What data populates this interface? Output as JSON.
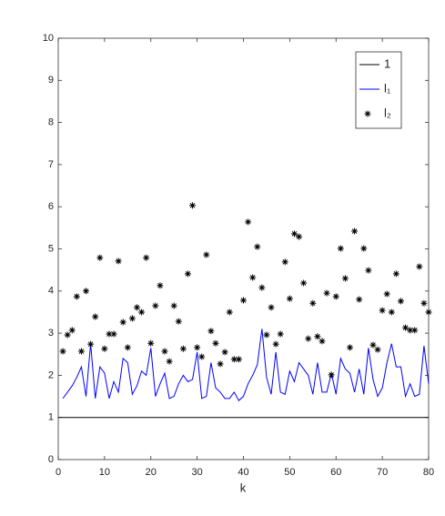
{
  "chart_data": {
    "type": "line",
    "xlabel": "k",
    "xlim": [
      0,
      80
    ],
    "xticks": [
      0,
      10,
      20,
      30,
      40,
      50,
      60,
      70,
      80
    ],
    "ylim": [
      0,
      10
    ],
    "yticks": [
      0,
      1,
      2,
      3,
      4,
      5,
      6,
      7,
      8,
      9,
      10
    ],
    "grid": false,
    "legend": "upper right",
    "series": [
      {
        "name": "1",
        "color": "#000000",
        "style": "line",
        "x": [
          0,
          80
        ],
        "values": [
          1,
          1
        ]
      },
      {
        "name": "l₁",
        "color": "#0000ff",
        "style": "line",
        "x": [
          1,
          2,
          3,
          4,
          5,
          6,
          7,
          8,
          9,
          10,
          11,
          12,
          13,
          14,
          15,
          16,
          17,
          18,
          19,
          20,
          21,
          22,
          23,
          24,
          25,
          26,
          27,
          28,
          29,
          30,
          31,
          32,
          33,
          34,
          35,
          36,
          37,
          38,
          39,
          40,
          41,
          42,
          43,
          44,
          45,
          46,
          47,
          48,
          49,
          50,
          51,
          52,
          53,
          54,
          55,
          56,
          57,
          58,
          59,
          60,
          61,
          62,
          63,
          64,
          65,
          66,
          67,
          68,
          69,
          70,
          71,
          72,
          73,
          74,
          75,
          76,
          77,
          78,
          79,
          80
        ],
        "values": [
          1.45,
          1.6,
          1.75,
          1.95,
          2.2,
          1.5,
          2.75,
          1.45,
          2.2,
          2.05,
          1.45,
          1.85,
          1.6,
          2.4,
          2.3,
          1.55,
          1.75,
          2.1,
          2.0,
          2.65,
          1.5,
          1.8,
          2.05,
          1.45,
          1.5,
          1.8,
          2.0,
          1.85,
          1.9,
          2.55,
          1.45,
          1.5,
          2.3,
          1.7,
          1.6,
          1.45,
          1.45,
          1.6,
          1.4,
          1.5,
          1.8,
          2.0,
          2.25,
          3.1,
          1.95,
          1.55,
          2.55,
          1.6,
          1.55,
          2.1,
          1.85,
          2.3,
          2.15,
          2.0,
          1.55,
          2.3,
          1.6,
          1.6,
          2.05,
          1.55,
          2.4,
          2.15,
          2.05,
          1.6,
          2.15,
          1.55,
          2.65,
          1.9,
          1.5,
          1.7,
          2.3,
          2.75,
          2.2,
          2.2,
          1.5,
          1.8,
          1.5,
          1.55,
          2.7,
          1.8
        ]
      },
      {
        "name": "l₂",
        "color": "#000000",
        "style": "asterisk",
        "x": [
          1,
          2,
          3,
          4,
          5,
          6,
          7,
          8,
          9,
          10,
          11,
          12,
          13,
          14,
          15,
          16,
          17,
          18,
          19,
          20,
          21,
          22,
          23,
          24,
          25,
          26,
          27,
          28,
          29,
          30,
          31,
          32,
          33,
          34,
          35,
          36,
          37,
          38,
          39,
          40,
          41,
          42,
          43,
          44,
          45,
          46,
          47,
          48,
          49,
          50,
          51,
          52,
          53,
          54,
          55,
          56,
          57,
          58,
          59,
          60,
          61,
          62,
          63,
          64,
          65,
          66,
          67,
          68,
          69,
          70,
          71,
          72,
          73,
          74,
          75,
          76,
          77,
          78,
          79,
          80
        ],
        "values": [
          2.57,
          2.96,
          3.07,
          3.87,
          2.57,
          4.0,
          2.74,
          3.39,
          4.79,
          2.63,
          2.98,
          2.98,
          4.71,
          3.26,
          2.66,
          3.35,
          3.61,
          3.5,
          4.79,
          2.76,
          3.65,
          4.13,
          2.57,
          2.33,
          3.65,
          3.28,
          2.63,
          4.41,
          6.03,
          2.66,
          2.44,
          4.86,
          3.05,
          2.76,
          2.27,
          2.55,
          3.5,
          2.38,
          2.38,
          3.78,
          5.64,
          4.32,
          5.05,
          4.08,
          2.96,
          3.61,
          2.74,
          2.98,
          4.69,
          3.82,
          5.36,
          5.29,
          4.19,
          2.87,
          3.71,
          2.92,
          2.81,
          3.95,
          2.01,
          3.87,
          5.01,
          4.3,
          2.66,
          5.42,
          3.8,
          5.01,
          4.49,
          2.72,
          2.61,
          3.54,
          3.93,
          3.5,
          4.41,
          3.76,
          3.13,
          3.07,
          3.07,
          4.58,
          3.71,
          3.5
        ]
      }
    ]
  }
}
